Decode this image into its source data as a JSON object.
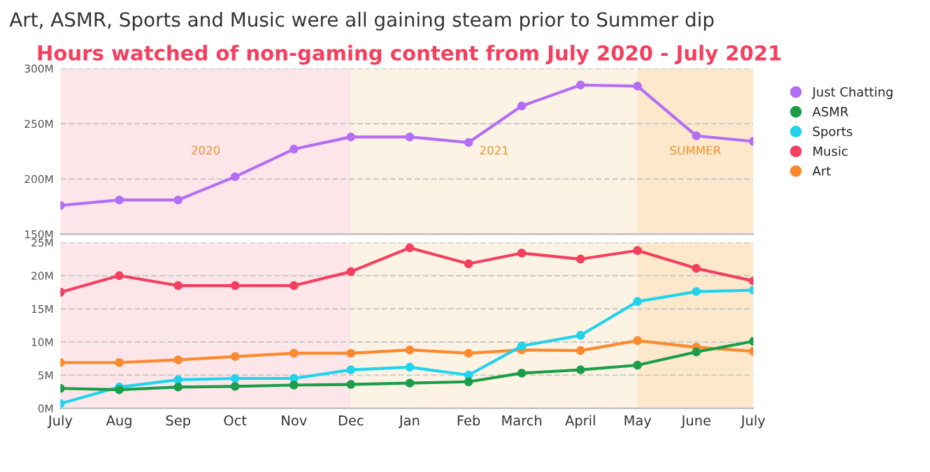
{
  "chart_data": [
    {
      "type": "line",
      "title": "Art, ASMR, Sports and Music were all gaining steam prior to Summer dip",
      "subtitle": "Hours watched of non-gaming content from July 2020 - July 2021",
      "x": [
        "2020-07",
        "2020-08",
        "2020-09",
        "2020-10",
        "2020-11",
        "2020-12",
        "2021-01",
        "2021-02",
        "2021-03",
        "2021-04",
        "2021-05",
        "2021-06",
        "2021-07"
      ],
      "xlim": [
        "2020-07",
        "2021-07"
      ],
      "series": [
        {
          "name": "Just Chatting",
          "color": "#b36ef5",
          "values": [
            176,
            181,
            181,
            202,
            227,
            238,
            238,
            233,
            266,
            285,
            284,
            239,
            234
          ]
        }
      ],
      "ylim": [
        150,
        300
      ],
      "yticks": [
        {
          "value": 150,
          "label": "150M"
        },
        {
          "value": 200,
          "label": "200M"
        },
        {
          "value": 250,
          "label": "250M"
        },
        {
          "value": 300,
          "label": "300M"
        }
      ],
      "tick_labels": "y",
      "grid": "y",
      "marker": "circle",
      "legend": "right",
      "bands": [
        {
          "axis": "x",
          "from": "2020-07",
          "to": "2020-12",
          "label": "2020",
          "color": "#fde6ea"
        },
        {
          "axis": "x",
          "from": "2020-12",
          "to": "2021-05",
          "label": "2021",
          "color": "#fdf3e4"
        },
        {
          "axis": "x",
          "from": "2021-05",
          "to": "2021-07",
          "label": "SUMMER",
          "color": "#fde8cc"
        }
      ]
    },
    {
      "type": "line",
      "x": [
        "2020-07",
        "2020-08",
        "2020-09",
        "2020-10",
        "2020-11",
        "2020-12",
        "2021-01",
        "2021-02",
        "2021-03",
        "2021-04",
        "2021-05",
        "2021-06",
        "2021-07"
      ],
      "xlim": [
        "2020-07",
        "2021-07"
      ],
      "xticks": [
        {
          "value": "2020-07",
          "label": "July"
        },
        {
          "value": "2020-08",
          "label": "Aug"
        },
        {
          "value": "2020-09",
          "label": "Sep"
        },
        {
          "value": "2020-10",
          "label": "Oct"
        },
        {
          "value": "2020-11",
          "label": "Nov"
        },
        {
          "value": "2020-12",
          "label": "Dec"
        },
        {
          "value": "2021-01",
          "label": "Jan"
        },
        {
          "value": "2021-02",
          "label": "Feb"
        },
        {
          "value": "2021-03",
          "label": "March"
        },
        {
          "value": "2021-04",
          "label": "April"
        },
        {
          "value": "2021-05",
          "label": "May"
        },
        {
          "value": "2021-06",
          "label": "June"
        },
        {
          "value": "2021-07",
          "label": "July"
        }
      ],
      "series": [
        {
          "name": "ASMR",
          "color": "#1a9e4a",
          "values": [
            3.0,
            2.8,
            3.2,
            3.3,
            3.5,
            3.6,
            3.8,
            4.0,
            5.3,
            5.8,
            6.5,
            8.5,
            10.1
          ]
        },
        {
          "name": "Sports",
          "color": "#22d3ee",
          "values": [
            0.7,
            3.2,
            4.3,
            4.5,
            4.5,
            5.8,
            6.2,
            5.0,
            9.4,
            11.0,
            16.1,
            17.6,
            17.8
          ]
        },
        {
          "name": "Music",
          "color": "#f43f5e",
          "values": [
            17.5,
            20.0,
            18.5,
            18.5,
            18.5,
            20.6,
            24.2,
            21.8,
            23.4,
            22.5,
            23.8,
            21.1,
            19.2
          ]
        },
        {
          "name": "Art",
          "color": "#fb8a2e",
          "values": [
            6.9,
            6.9,
            7.3,
            7.8,
            8.3,
            8.3,
            8.8,
            8.3,
            8.8,
            8.7,
            10.2,
            9.2,
            8.6
          ]
        }
      ],
      "ylim": [
        0,
        25
      ],
      "yticks": [
        {
          "value": 0,
          "label": "0M"
        },
        {
          "value": 5,
          "label": "5M"
        },
        {
          "value": 10,
          "label": "10M"
        },
        {
          "value": 15,
          "label": "15M"
        },
        {
          "value": 20,
          "label": "20M"
        },
        {
          "value": 25,
          "label": "25M"
        }
      ],
      "grid": "y",
      "marker": "circle",
      "legend": "right",
      "bands": [
        {
          "axis": "x",
          "from": "2020-07",
          "to": "2020-12",
          "color": "#fde6ea"
        },
        {
          "axis": "x",
          "from": "2020-12",
          "to": "2021-05",
          "color": "#fdf3e4"
        },
        {
          "axis": "x",
          "from": "2021-05",
          "to": "2021-07",
          "color": "#fde8cc"
        }
      ]
    }
  ]
}
